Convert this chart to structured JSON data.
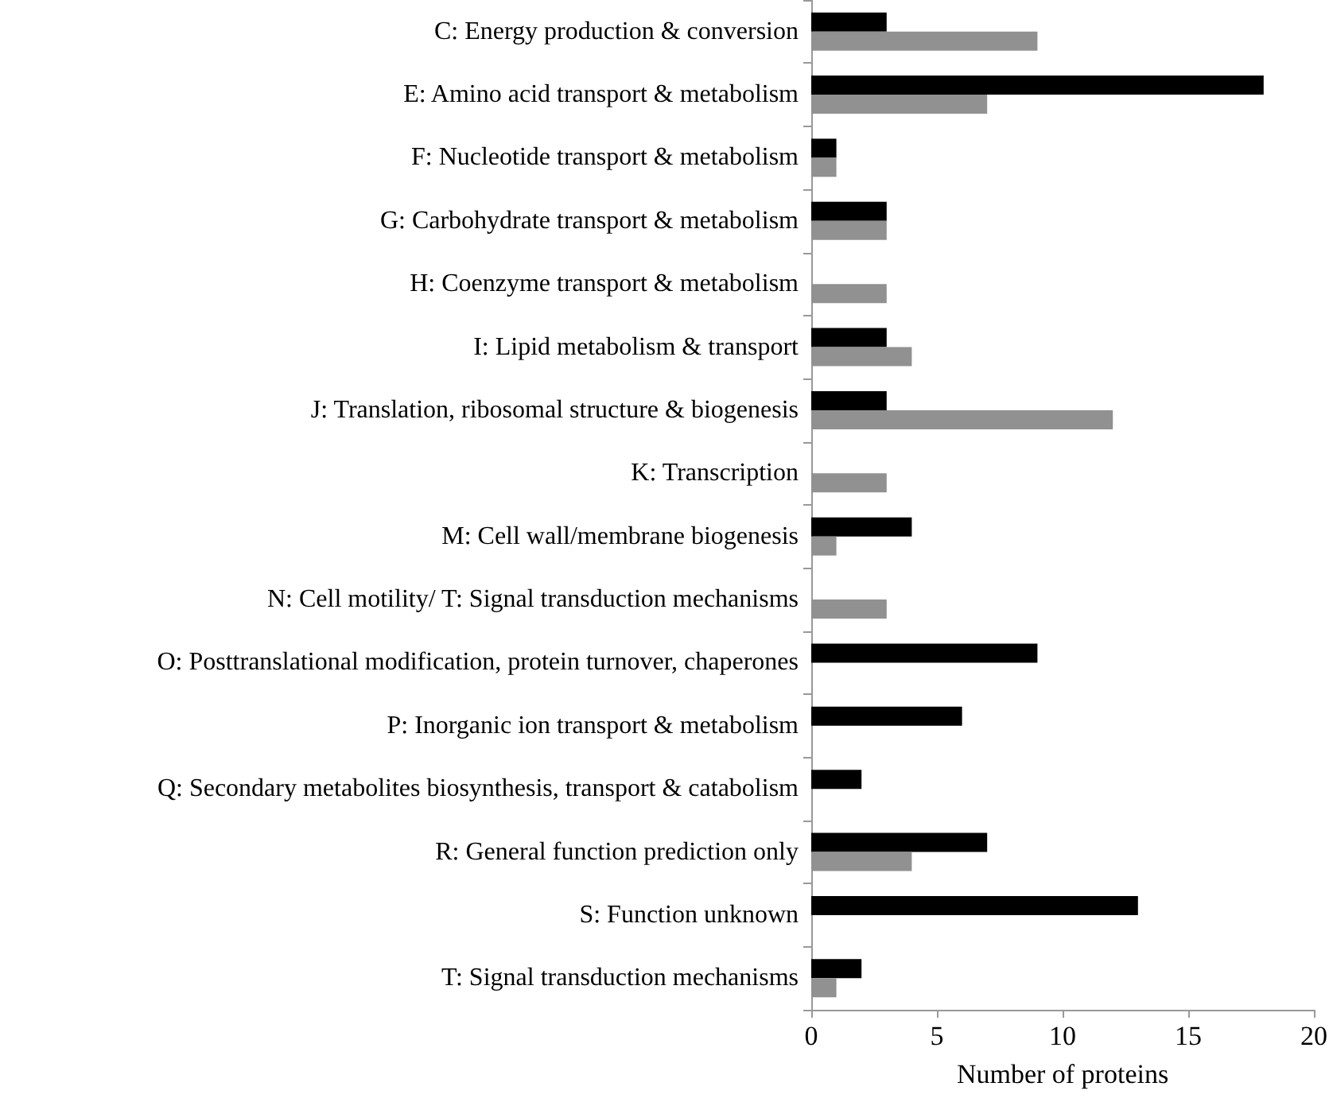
{
  "chart_data": {
    "type": "bar",
    "orientation": "horizontal",
    "xlabel": "Number of proteins",
    "categories": [
      "C: Energy production & conversion",
      "E: Amino acid transport & metabolism",
      "F: Nucleotide transport & metabolism",
      "G: Carbohydrate transport & metabolism",
      "H: Coenzyme transport & metabolism",
      "I: Lipid metabolism & transport",
      "J: Translation, ribosomal structure & biogenesis",
      "K: Transcription",
      "M: Cell wall/membrane biogenesis",
      "N: Cell motility/ T: Signal transduction mechanisms",
      "O: Posttranslational modification, protein turnover, chaperones",
      "P: Inorganic ion transport & metabolism",
      "Q: Secondary metabolites biosynthesis, transport & catabolism",
      "R: General function prediction only",
      "S: Function unknown",
      "T: Signal transduction mechanisms"
    ],
    "series": [
      {
        "color": "#000000",
        "values": [
          3,
          18,
          1,
          3,
          null,
          3,
          3,
          null,
          4,
          null,
          9,
          6,
          2,
          7,
          13,
          2
        ]
      },
      {
        "color": "#919191",
        "values": [
          9,
          7,
          1,
          3,
          3,
          4,
          12,
          3,
          1,
          3,
          null,
          null,
          null,
          4,
          null,
          1
        ]
      }
    ],
    "xlim": [
      0,
      20
    ],
    "xticks": [
      0,
      5,
      10,
      15,
      20
    ],
    "grid": false
  }
}
